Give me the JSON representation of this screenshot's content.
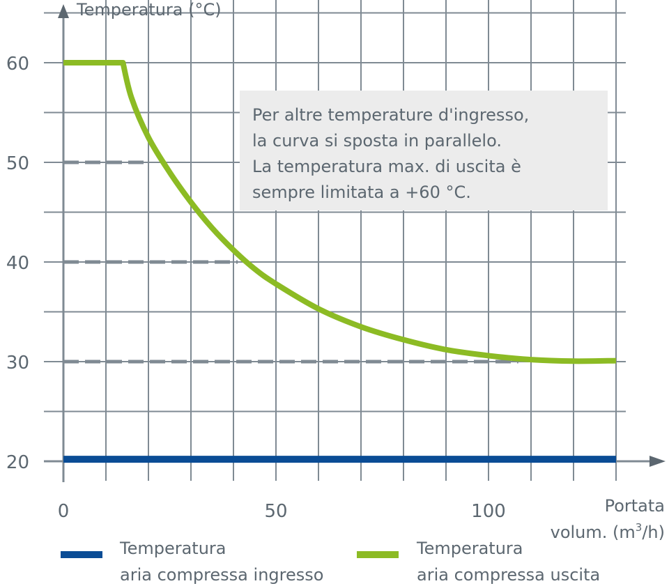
{
  "chart_data": {
    "type": "line",
    "y_title": "Temperatura (°C)",
    "x_title_line1": "Portata",
    "x_title_line2_prefix": "volum. (m",
    "x_title_sup": "3",
    "x_title_line2_suffix": "/h)",
    "x_ticks": [
      0,
      50,
      100
    ],
    "y_ticks": [
      20,
      30,
      40,
      50,
      60
    ],
    "xlim": [
      0,
      130
    ],
    "ylim": [
      20,
      65
    ],
    "grid": true,
    "note_lines": [
      "Per altre temperature d'ingresso,",
      "la curva si sposta in parallelo.",
      "La temperatura max. di uscita è",
      "sempre limitata a +60 °C."
    ],
    "reference_lines": [
      {
        "y": 50,
        "x_end": 20
      },
      {
        "y": 40,
        "x_end": 41
      },
      {
        "y": 30,
        "x_end": 107
      }
    ],
    "series": [
      {
        "key": "inlet",
        "color": "#0a4c95",
        "x": [
          0,
          130
        ],
        "y": [
          20.2,
          20.2
        ]
      },
      {
        "key": "outlet",
        "color": "#8cbb24",
        "x": [
          0,
          14,
          16,
          20,
          25,
          30,
          35,
          40,
          45,
          50,
          60,
          70,
          80,
          90,
          100,
          110,
          120,
          130
        ],
        "y": [
          60,
          60,
          56.5,
          52.5,
          49,
          46,
          43.4,
          41.2,
          39.3,
          37.8,
          35.3,
          33.5,
          32.2,
          31.2,
          30.6,
          30.2,
          30.05,
          30.1
        ]
      }
    ],
    "legend": [
      {
        "key": "inlet",
        "color": "#0a4c95",
        "line1": "Temperatura",
        "line2": "aria compressa ingresso"
      },
      {
        "key": "outlet",
        "color": "#8cbb24",
        "line1": "Temperatura",
        "line2": "aria compressa uscita"
      }
    ]
  }
}
